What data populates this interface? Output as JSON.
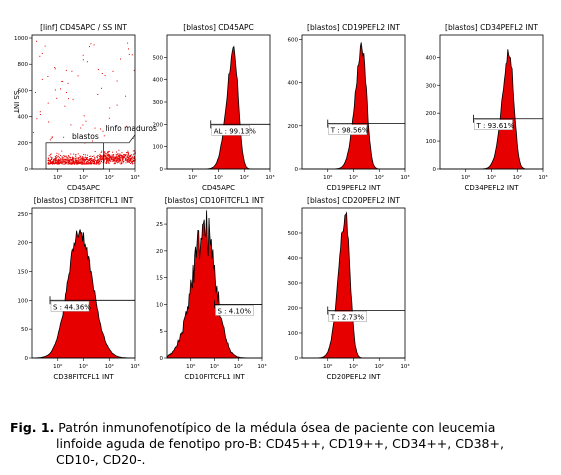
{
  "caption": {
    "label": "Fig. 1.",
    "line1": " Patrón inmunofenotípico de la médula ósea de paciente con leucemia",
    "line2": "linfoide aguda de fenotipo pro-B: CD45++, CD19++, CD34++, CD38+,",
    "line3": "CD10-, CD20-."
  },
  "chart_data": [
    {
      "type": "scatter",
      "title": "[linf] CD45APC / SS INT",
      "xlabel": "CD45APC",
      "ylabel": "SS INT",
      "xscale": "log",
      "xlim": [
        0.1,
        1000
      ],
      "xticks": [
        "10⁰",
        "10¹",
        "10²",
        "10³"
      ],
      "ylim": [
        0,
        1023
      ],
      "yticks": [
        0,
        200,
        400,
        600,
        800,
        1000
      ],
      "gates": [
        {
          "label": "blastos",
          "x": [
            0.35,
            60
          ],
          "y": [
            0,
            200
          ]
        },
        {
          "label": "linfo maduros",
          "x": [
            60,
            1000
          ],
          "y": [
            0,
            200
          ]
        }
      ],
      "color": "#e60000"
    },
    {
      "type": "area",
      "title": "[blastos] CD45APC",
      "xlabel": "CD45APC",
      "xscale": "log",
      "xlim": [
        0.1,
        1000
      ],
      "xticks": [
        "10⁰",
        "10¹",
        "10²",
        "10³"
      ],
      "ylim": [
        0,
        600
      ],
      "yticks": [
        0,
        100,
        200,
        300,
        400,
        500
      ],
      "peak": {
        "x": 40,
        "y": 530
      },
      "marker": {
        "label": "AL : 99.13%",
        "x": [
          5,
          1000
        ],
        "y": 200
      },
      "color": "#e60000"
    },
    {
      "type": "area",
      "title": "[blastos] CD19PEFL2 INT",
      "xlabel": "CD19PEFL2 INT",
      "xscale": "log",
      "xlim": [
        0.1,
        1000
      ],
      "xticks": [
        "10⁰",
        "10¹",
        "10²",
        "10³"
      ],
      "ylim": [
        0,
        620
      ],
      "yticks": [
        0,
        200,
        400,
        600
      ],
      "peak": {
        "x": 22,
        "y": 560
      },
      "marker": {
        "label": "T : 98.56%",
        "x": [
          1,
          1000
        ],
        "y": 210
      },
      "color": "#e60000"
    },
    {
      "type": "area",
      "title": "[blastos] CD34PEFL2 INT",
      "xlabel": "CD34PEFL2 INT",
      "xscale": "log",
      "xlim": [
        0.1,
        1000
      ],
      "xticks": [
        "10⁰",
        "10¹",
        "10²",
        "10³"
      ],
      "ylim": [
        0,
        480
      ],
      "yticks": [
        0,
        100,
        200,
        300,
        400
      ],
      "peak": {
        "x": 50,
        "y": 420
      },
      "marker": {
        "label": "T : 93.61%",
        "x": [
          2,
          1000
        ],
        "y": 180
      },
      "color": "#e60000"
    },
    {
      "type": "area",
      "title": "[blastos] CD38FITCFL1 INT",
      "xlabel": "CD38FITCFL1 INT",
      "xscale": "log",
      "xlim": [
        0.1,
        1000
      ],
      "xticks": [
        "10⁰",
        "10¹",
        "10²",
        "10³"
      ],
      "ylim": [
        0,
        260
      ],
      "yticks": [
        0,
        50,
        100,
        150,
        200,
        250
      ],
      "peak": {
        "x": 7,
        "y": 220
      },
      "marker": {
        "label": "S : 44.36%",
        "x": [
          0.5,
          1000
        ],
        "y": 100
      },
      "color": "#e60000"
    },
    {
      "type": "area",
      "title": "[blastos] CD10FITCFL1 INT",
      "xlabel": "CD10FITCFL1 INT",
      "xscale": "log",
      "xlim": [
        0.1,
        1000
      ],
      "xticks": [
        "10⁰",
        "10¹",
        "10²",
        "10³"
      ],
      "ylim": [
        0,
        28
      ],
      "yticks": [
        0,
        5,
        10,
        15,
        20,
        25
      ],
      "peak": {
        "x": 4,
        "y": 24
      },
      "marker": {
        "label": "S : 4.10%",
        "x": [
          10,
          1000
        ],
        "y": 10
      },
      "color": "#e60000"
    },
    {
      "type": "area",
      "title": "[blastos] CD20PEFL2 INT",
      "xlabel": "CD20PEFL2 INT",
      "xscale": "log",
      "xlim": [
        0.1,
        1000
      ],
      "xticks": [
        "10⁰",
        "10¹",
        "10²",
        "10³"
      ],
      "ylim": [
        0,
        600
      ],
      "yticks": [
        0,
        100,
        200,
        300,
        400,
        500
      ],
      "peak": {
        "x": 5,
        "y": 560
      },
      "marker": {
        "label": "T : 2.73%",
        "x": [
          1,
          1000
        ],
        "y": 190
      },
      "color": "#e60000"
    }
  ]
}
